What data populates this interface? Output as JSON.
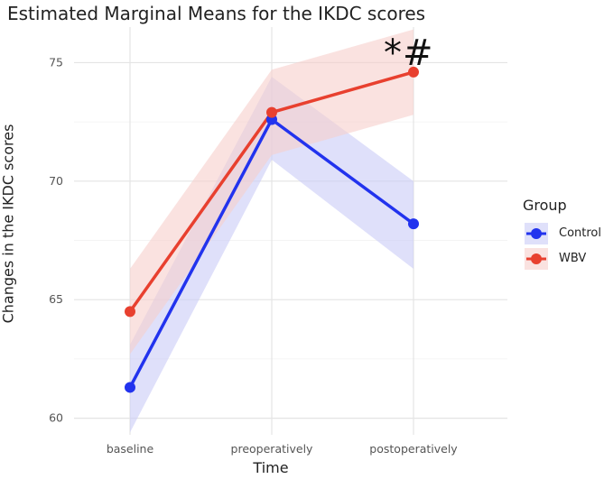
{
  "chart_data": {
    "type": "line",
    "title": "Estimated Marginal Means for the IKDC scores",
    "xlabel": "Time",
    "ylabel": "Changes in the IKDC scores",
    "categories": [
      "baseline",
      "preoperatively",
      "postoperatively"
    ],
    "ylim": [
      59.3,
      76.5
    ],
    "yticks": [
      60,
      65,
      70,
      75
    ],
    "grid": true,
    "legend": {
      "title": "Group",
      "position": "right"
    },
    "annotation": {
      "text": "*#",
      "category": "postoperatively",
      "y": 76.1
    },
    "series": [
      {
        "name": "Control",
        "color": "#2233ee",
        "band_color": "#c9cbf6",
        "values": [
          61.3,
          72.6,
          68.2
        ],
        "lower": [
          59.4,
          70.9,
          66.3
        ],
        "upper": [
          63.1,
          74.4,
          70.0
        ]
      },
      {
        "name": "WBV",
        "color": "#e8402f",
        "band_color": "#f6cfcb",
        "values": [
          64.5,
          72.9,
          74.6
        ],
        "lower": [
          62.7,
          71.1,
          72.8
        ],
        "upper": [
          66.3,
          74.7,
          76.4
        ]
      }
    ]
  }
}
